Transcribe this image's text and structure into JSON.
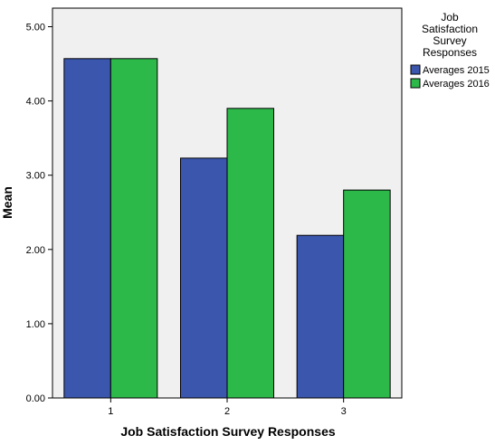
{
  "chart_data": {
    "type": "bar",
    "categories": [
      "1",
      "2",
      "3"
    ],
    "series": [
      {
        "name": "Averages 2015",
        "values": [
          4.57,
          3.23,
          2.19
        ],
        "color": "#3b56ad"
      },
      {
        "name": "Averages 2016",
        "values": [
          4.57,
          3.9,
          2.8
        ],
        "color": "#2db94a"
      }
    ],
    "xlabel": "Job Satisfaction Survey Responses",
    "ylabel": "Mean",
    "ylim": [
      0,
      5.25
    ],
    "yticks": [
      "0.00",
      "1.00",
      "2.00",
      "3.00",
      "4.00",
      "5.00"
    ],
    "grid": false,
    "legend": {
      "title": [
        "Job",
        "Satisfaction",
        "Survey",
        "Responses"
      ],
      "placement": "top-right"
    },
    "plot_background": "#f0f0f0"
  }
}
